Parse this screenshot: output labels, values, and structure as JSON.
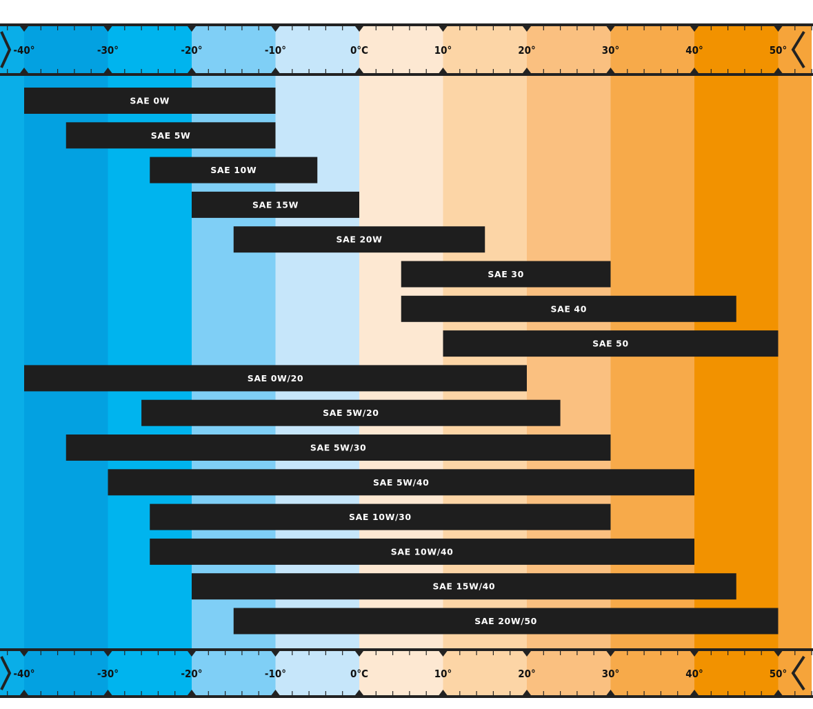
{
  "chart_data": {
    "type": "range-bar",
    "x_unit": "°C",
    "xlim": [
      -43,
      54
    ],
    "tick_values": [
      -40,
      -30,
      -20,
      -10,
      0,
      10,
      20,
      30,
      40,
      50
    ],
    "tick_labels": [
      "-40°",
      "-30°",
      "-20°",
      "-10°",
      "0°C",
      "10°",
      "20°",
      "30°",
      "40°",
      "50°"
    ],
    "bands": [
      {
        "from": -43,
        "to": -40,
        "color": "#0aaee8"
      },
      {
        "from": -40,
        "to": -30,
        "color": "#03a1e1"
      },
      {
        "from": -30,
        "to": -20,
        "color": "#00b4ee"
      },
      {
        "from": -20,
        "to": -10,
        "color": "#7fcff6"
      },
      {
        "from": -10,
        "to": 0,
        "color": "#c6e6fa"
      },
      {
        "from": 0,
        "to": 10,
        "color": "#fde8d2"
      },
      {
        "from": 10,
        "to": 20,
        "color": "#fcd5a6"
      },
      {
        "from": 20,
        "to": 30,
        "color": "#fac080"
      },
      {
        "from": 30,
        "to": 40,
        "color": "#f7aa4a"
      },
      {
        "from": 40,
        "to": 50,
        "color": "#f29200"
      },
      {
        "from": 50,
        "to": 54,
        "color": "#f6a43a"
      }
    ],
    "series": [
      {
        "label": "SAE 0W",
        "min": -40,
        "max": -10
      },
      {
        "label": "SAE 5W",
        "min": -35,
        "max": -10
      },
      {
        "label": "SAE 10W",
        "min": -25,
        "max": -5
      },
      {
        "label": "SAE 15W",
        "min": -20,
        "max": 0
      },
      {
        "label": "SAE 20W",
        "min": -15,
        "max": 15
      },
      {
        "label": "SAE 30",
        "min": 5,
        "max": 30
      },
      {
        "label": "SAE 40",
        "min": 5,
        "max": 45
      },
      {
        "label": "SAE 50",
        "min": 10,
        "max": 50
      },
      {
        "label": "SAE 0W/20",
        "min": -40,
        "max": 20
      },
      {
        "label": "SAE 5W/20",
        "min": -26,
        "max": 24
      },
      {
        "label": "SAE 5W/30",
        "min": -35,
        "max": 30
      },
      {
        "label": "SAE 5W/40",
        "min": -30,
        "max": 40
      },
      {
        "label": "SAE 10W/30",
        "min": -25,
        "max": 30
      },
      {
        "label": "SAE 10W/40",
        "min": -25,
        "max": 40
      },
      {
        "label": "SAE 15W/40",
        "min": -20,
        "max": 45
      },
      {
        "label": "SAE 20W/50",
        "min": -15,
        "max": 50
      }
    ],
    "colors": {
      "bar": "#1e1e1e",
      "bar_text": "#ffffff",
      "axis_line": "#222222"
    }
  }
}
